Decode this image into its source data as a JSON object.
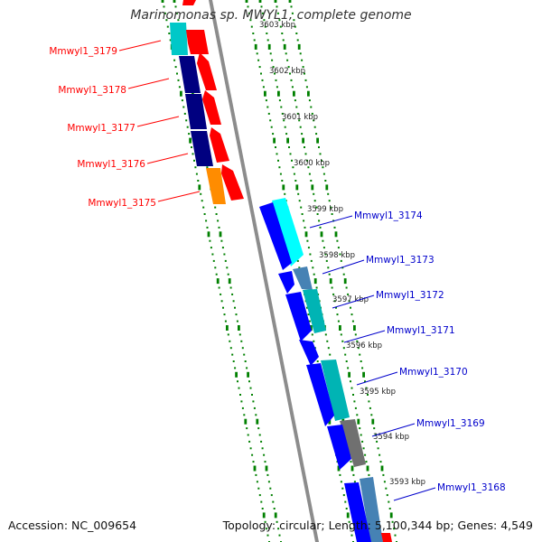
{
  "title": "Marinomonas sp. MWYL1, complete genome",
  "accession": "Accession: NC_009654",
  "topology": "Topology: circular; Length: 5,100,344 bp; Genes: 4,549",
  "ticks": [
    "3603 kbp",
    "3602 kbp",
    "3601 kbp",
    "3600 kbp",
    "3599 kbp",
    "3598 kbp",
    "3597 kbp",
    "3596 kbp",
    "3595 kbp",
    "3594 kbp",
    "3593 kbp"
  ],
  "left_genes": [
    {
      "label": "Mmwyl1_3179",
      "color": "#ff0000"
    },
    {
      "label": "Mmwyl1_3178",
      "color": "#ff0000"
    },
    {
      "label": "Mmwyl1_3177",
      "color": "#ff0000"
    },
    {
      "label": "Mmwyl1_3176",
      "color": "#ff0000"
    },
    {
      "label": "Mmwyl1_3175",
      "color": "#ff0000"
    }
  ],
  "right_genes": [
    {
      "label": "Mmwyl1_3174",
      "color": "#0000cc"
    },
    {
      "label": "Mmwyl1_3173",
      "color": "#0000cc"
    },
    {
      "label": "Mmwyl1_3172",
      "color": "#0000cc"
    },
    {
      "label": "Mmwyl1_3171",
      "color": "#0000cc"
    },
    {
      "label": "Mmwyl1_3170",
      "color": "#0000cc"
    },
    {
      "label": "Mmwyl1_3169",
      "color": "#0000cc"
    },
    {
      "label": "Mmwyl1_3168",
      "color": "#0000cc"
    }
  ],
  "colors": {
    "forward_cds": "#ff0000",
    "reverse_cds": "#0000ff",
    "navy": "#000080",
    "cyan": "#00ffff",
    "teal": "#00b4b4",
    "orange": "#ff8c00",
    "steel": "#4682b4",
    "grey": "#707070",
    "dots": "#008000"
  }
}
